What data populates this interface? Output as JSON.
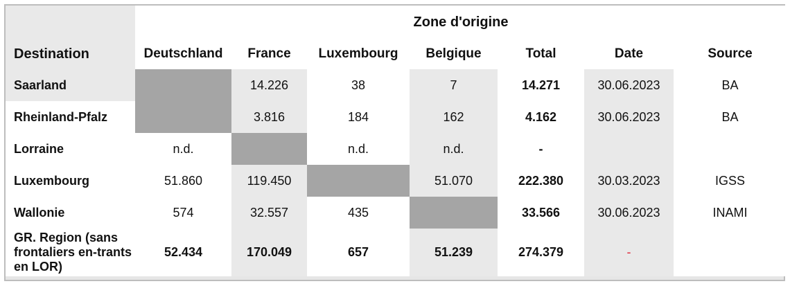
{
  "zone_title": "Zone d'origine",
  "headers": {
    "destination": "Destination",
    "columns": [
      "Deutschland",
      "France",
      "Luxembourg",
      "Belgique",
      "Total",
      "Date",
      "Source"
    ]
  },
  "rows": [
    {
      "label": "Saarland",
      "cells": [
        "",
        "14.226",
        "38",
        "7",
        "14.271",
        "30.06.2023",
        "BA"
      ]
    },
    {
      "label": "Rheinland-Pfalz",
      "cells": [
        "",
        "3.816",
        "184",
        "162",
        "4.162",
        "30.06.2023",
        "BA"
      ]
    },
    {
      "label": "Lorraine",
      "cells": [
        "n.d.",
        "",
        "n.d.",
        "n.d.",
        "-",
        "",
        ""
      ]
    },
    {
      "label": "Luxembourg",
      "cells": [
        "51.860",
        "119.450",
        "",
        "51.070",
        "222.380",
        "30.03.2023",
        "IGSS"
      ]
    },
    {
      "label": "Wallonie",
      "cells": [
        "574",
        "32.557",
        "435",
        "",
        "33.566",
        "30.06.2023",
        "INAMI"
      ]
    },
    {
      "label": "GR. Region (sans frontaliers en-trants en LOR)",
      "cells": [
        "52.434",
        "170.049",
        "657",
        "51.239",
        "274.379",
        "-",
        ""
      ]
    }
  ],
  "colors": {
    "frame": "#bdbdbd",
    "shade": "#e9e9e9",
    "empty_cell": "#a5a5a5",
    "dash_red": "#e0283a"
  }
}
